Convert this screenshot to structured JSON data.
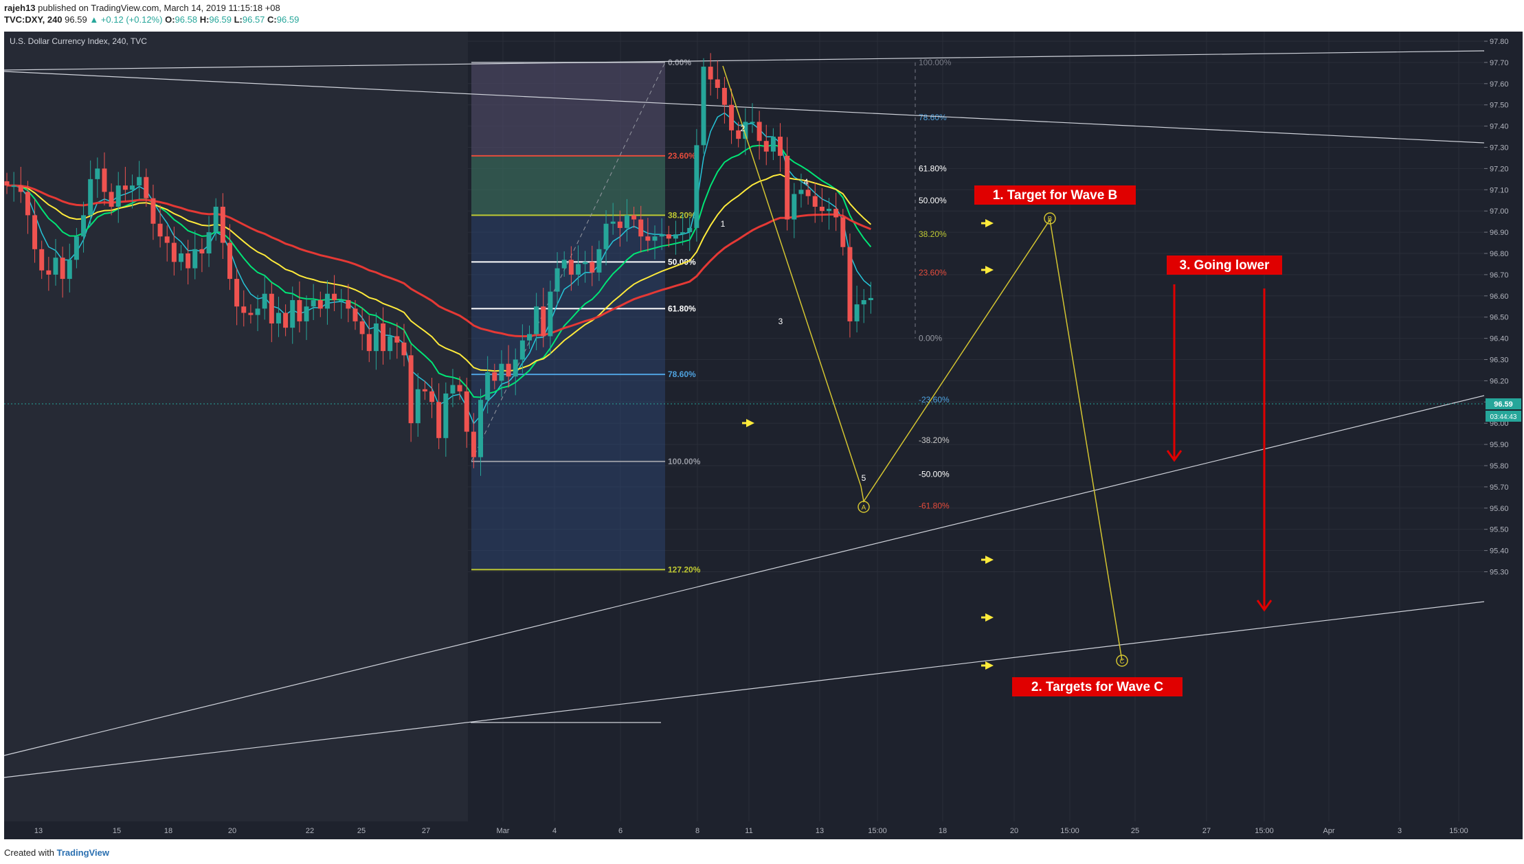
{
  "header": {
    "user": "rajeh13",
    "publish_text": "published on TradingView.com, March 14, 2019 11:15:18 +08",
    "symbol": "TVC:DXY, 240",
    "price": "96.59",
    "change": "▲ +0.12 (+0.12%)",
    "o_label": "O:",
    "o_val": "96.58",
    "h_label": "H:",
    "h_val": "96.59",
    "l_label": "L:",
    "l_val": "96.57",
    "c_label": "C:",
    "c_val": "96.59"
  },
  "footer": {
    "created_with": "Created with",
    "brand": "TradingView"
  },
  "chart_data": {
    "type": "candlestick",
    "title": "U.S. Dollar Currency Index, 240, TVC",
    "y_ticks": [
      "97.80",
      "97.70",
      "97.60",
      "97.50",
      "97.40",
      "97.30",
      "97.20",
      "97.10",
      "97.00",
      "96.90",
      "96.80",
      "96.70",
      "96.60",
      "96.50",
      "96.40",
      "96.30",
      "96.20",
      "96.10",
      "96.00",
      "95.90",
      "95.80",
      "95.70",
      "95.60",
      "95.50",
      "95.40",
      "95.30"
    ],
    "x_ticks": [
      "13",
      "15",
      "18",
      "20",
      "22",
      "25",
      "27",
      "Mar",
      "4",
      "6",
      "8",
      "11",
      "13",
      "15:00",
      "18",
      "20",
      "15:00",
      "25",
      "27",
      "15:00",
      "Apr",
      "3",
      "15:00"
    ],
    "last_price": "96.59",
    "countdown": "03:44:43",
    "closes": [
      97.12,
      97.12,
      97.09,
      96.98,
      96.82,
      96.72,
      96.7,
      96.78,
      96.68,
      96.77,
      96.88,
      96.98,
      97.15,
      97.2,
      97.09,
      97.02,
      97.12,
      97.1,
      97.12,
      97.16,
      97.06,
      96.94,
      96.88,
      96.85,
      96.76,
      96.8,
      96.73,
      96.82,
      96.8,
      96.9,
      97.02,
      96.85,
      96.68,
      96.55,
      96.52,
      96.51,
      96.54,
      96.61,
      96.47,
      96.52,
      96.45,
      96.58,
      96.48,
      96.55,
      96.58,
      96.54,
      96.61,
      96.58,
      96.58,
      96.54,
      96.48,
      96.42,
      96.34,
      96.47,
      96.34,
      96.41,
      96.38,
      96.32,
      96.0,
      96.16,
      96.15,
      96.1,
      95.93,
      96.14,
      96.18,
      96.15,
      95.96,
      95.84,
      96.11,
      96.24,
      96.2,
      96.28,
      96.22,
      96.3,
      96.39,
      96.42,
      96.55,
      96.41,
      96.62,
      96.73,
      96.77,
      96.7,
      96.75,
      96.76,
      96.71,
      96.82,
      96.94,
      96.95,
      96.92,
      96.98,
      96.96,
      96.88,
      96.86,
      96.88,
      96.89,
      96.87,
      96.89,
      96.9,
      96.92,
      97.31,
      97.68,
      97.62,
      97.58,
      97.5,
      97.38,
      97.34,
      97.42,
      97.42,
      97.33,
      97.28,
      97.35,
      97.26,
      96.96,
      97.08,
      97.1,
      97.07,
      97.02,
      97.0,
      97.01,
      96.97,
      96.83,
      96.48,
      96.56,
      96.58,
      96.59
    ],
    "fib_retracement": [
      {
        "level": "0.00%",
        "price": 97.7
      },
      {
        "level": "23.60%",
        "price": 97.26
      },
      {
        "level": "38.20%",
        "price": 96.98
      },
      {
        "level": "50.00%",
        "price": 96.76
      },
      {
        "level": "61.80%",
        "price": 96.54
      },
      {
        "level": "78.60%",
        "price": 96.23
      },
      {
        "level": "100.00%",
        "price": 95.82
      },
      {
        "level": "127.20%",
        "price": 95.31
      }
    ],
    "fib_extension": [
      {
        "level": "100.00%",
        "price": 97.7
      },
      {
        "level": "78.60%",
        "price": 97.44
      },
      {
        "level": "61.80%",
        "price": 97.2
      },
      {
        "level": "50.00%",
        "price": 97.05
      },
      {
        "level": "38.20%",
        "price": 96.89
      },
      {
        "level": "23.60%",
        "price": 96.71
      },
      {
        "level": "0.00%",
        "price": 96.4
      },
      {
        "level": "-23.60%",
        "price": 96.11
      },
      {
        "level": "-38.20%",
        "price": 95.92
      },
      {
        "level": "-50.00%",
        "price": 95.76
      },
      {
        "level": "-61.80%",
        "price": 95.61
      }
    ],
    "wave_labels": [
      "1",
      "2",
      "3",
      "4",
      "5"
    ],
    "abc_labels": [
      "A",
      "B",
      "C"
    ],
    "annotations": [
      "1. Target for Wave B",
      "2. Targets for Wave C",
      "3. Going lower"
    ],
    "colors": {
      "background": "#1e222d",
      "candle_up": "#26a69a",
      "candle_down": "#ef5350",
      "ema_fast": "#26c6da",
      "ema_mid": "#00e676",
      "ema_slow": "#ffeb3b",
      "ema_long": "#e53935",
      "projection": "#d4c531",
      "callout_bg": "#e00000",
      "arrow": "#ffeb3b"
    }
  }
}
